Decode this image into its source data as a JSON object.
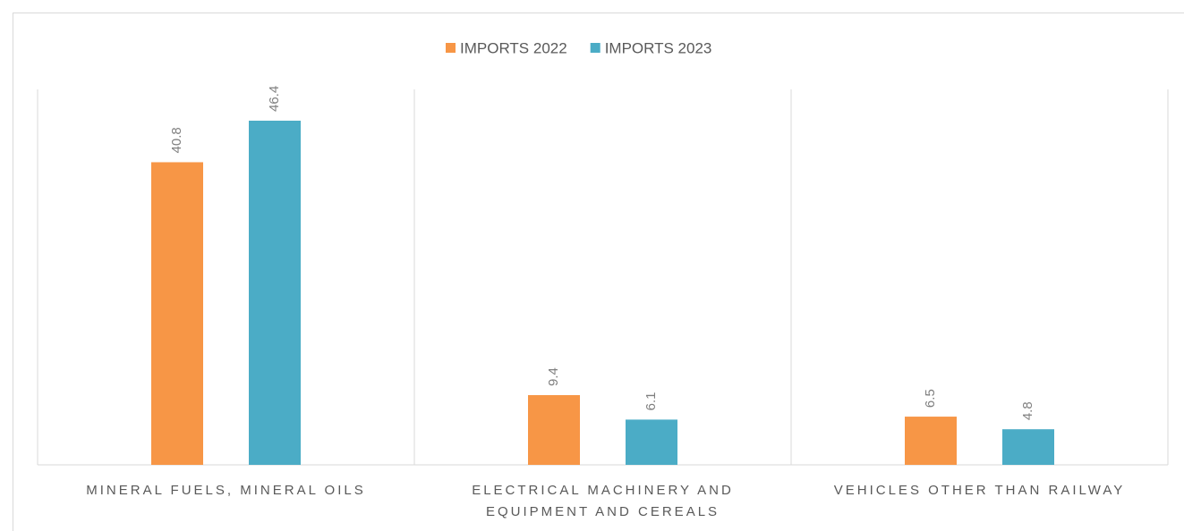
{
  "chart_data": {
    "type": "bar",
    "categories": [
      "MINERAL FUELS, MINERAL OILS",
      "ELECTRICAL MACHINERY AND EQUIPMENT AND CEREALS",
      "VEHICLES OTHER THAN RAILWAY"
    ],
    "series": [
      {
        "name": "IMPORTS 2022",
        "color": "#f79646",
        "values": [
          40.8,
          9.4,
          6.5
        ]
      },
      {
        "name": "IMPORTS 2023",
        "color": "#4bacc6",
        "values": [
          46.4,
          6.1,
          4.8
        ]
      }
    ],
    "legend": "top"
  }
}
